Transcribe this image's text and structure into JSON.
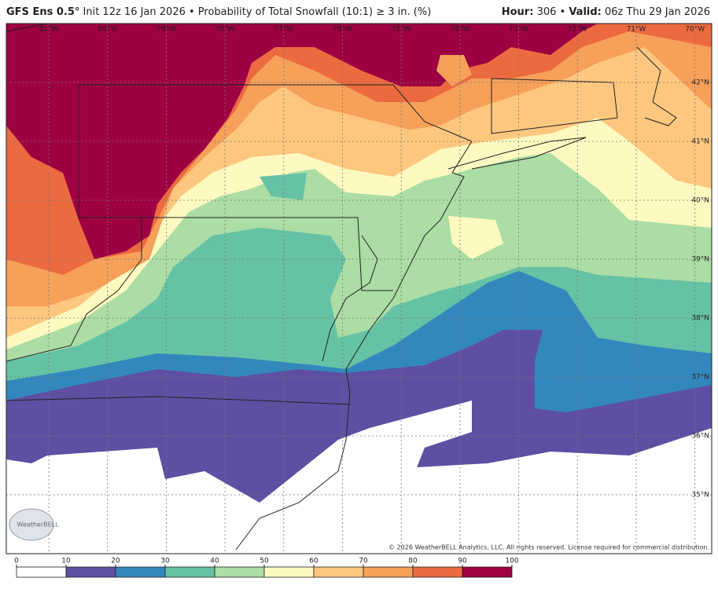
{
  "header": {
    "model": "GFS Ens 0.5°",
    "product": "Init 12z 16 Jan 2026 • Probability of Total Snowfall (10:1) ≥ 3 in. (%)",
    "hour_label": "Hour:",
    "hour": "306 •",
    "valid_label": "Valid:",
    "valid": "06z Thu 29 Jan 2026"
  },
  "map": {
    "longitudes": [
      "81°W",
      "80°W",
      "79°W",
      "78°W",
      "77°W",
      "76°W",
      "75°W",
      "74°W",
      "73°W",
      "72°W",
      "71°W",
      "70°W"
    ],
    "latitudes": [
      "42°N",
      "41°N",
      "40°N",
      "39°N",
      "38°N",
      "37°N",
      "36°N",
      "35°N"
    ],
    "copyright": "© 2026 WeatherBELL Analytics, LLC. All rights reserved. License required for commercial distribution.",
    "logo": "WeatherBELL"
  },
  "colorbar": {
    "ticks": [
      0,
      10,
      20,
      30,
      40,
      50,
      60,
      70,
      80,
      90,
      100
    ],
    "colors": [
      "#ffffff",
      "#5e4fa2",
      "#3288bd",
      "#66c2a5",
      "#abdda4",
      "#fef9c0",
      "#fdc77f",
      "#f6a05a",
      "#ec6a40",
      "#9e0142"
    ]
  }
}
